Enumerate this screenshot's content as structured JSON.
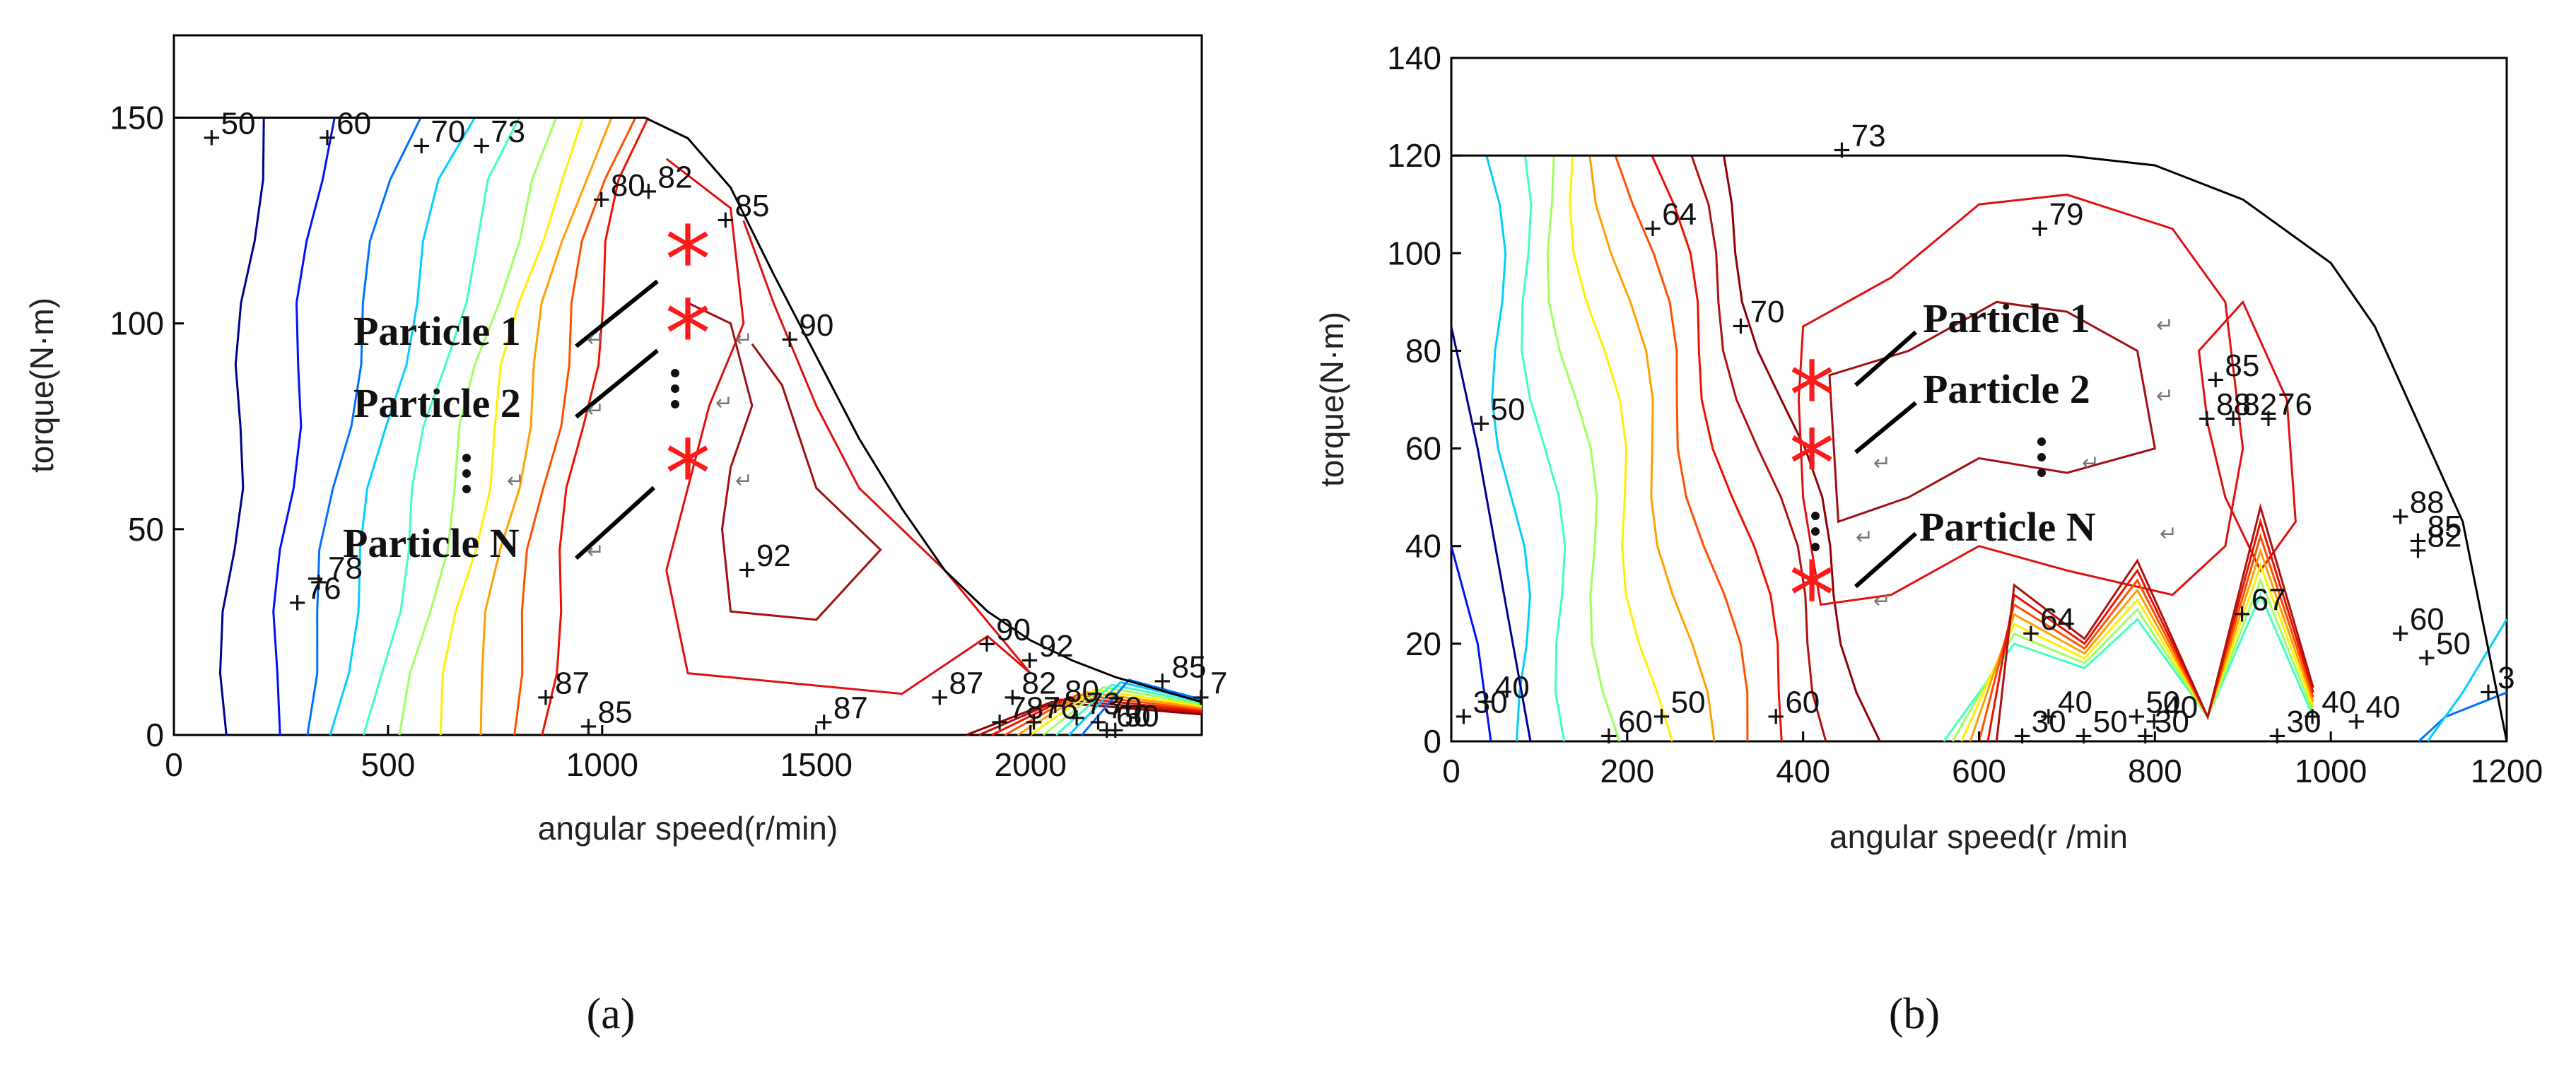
{
  "chart_data": [
    {
      "type": "contour",
      "panel_label": "(a)",
      "xlabel": "angular speed(r/min)",
      "ylabel": "torque(N·m)",
      "xlim": [
        0,
        2400
      ],
      "ylim": [
        0,
        170
      ],
      "xticks": [
        0,
        500,
        1000,
        1500,
        2000
      ],
      "yticks": [
        0,
        50,
        100,
        150
      ],
      "boundary": [
        [
          0,
          150
        ],
        [
          100,
          150
        ],
        [
          1000,
          150
        ],
        [
          1100,
          150
        ],
        [
          1200,
          145
        ],
        [
          1300,
          133
        ],
        [
          1400,
          112
        ],
        [
          1500,
          92
        ],
        [
          1600,
          72
        ],
        [
          1700,
          55
        ],
        [
          1800,
          40
        ],
        [
          1900,
          30
        ],
        [
          2000,
          23
        ],
        [
          2100,
          18
        ],
        [
          2200,
          14
        ],
        [
          2300,
          11
        ],
        [
          2400,
          8
        ]
      ],
      "contour_labels": [
        {
          "text": "50",
          "x": 90,
          "y": 145
        },
        {
          "text": "60",
          "x": 360,
          "y": 145
        },
        {
          "text": "70",
          "x": 580,
          "y": 143
        },
        {
          "text": "73",
          "x": 720,
          "y": 143
        },
        {
          "text": "80",
          "x": 1000,
          "y": 130
        },
        {
          "text": "82",
          "x": 1110,
          "y": 132
        },
        {
          "text": "85",
          "x": 1290,
          "y": 125
        },
        {
          "text": "90",
          "x": 1440,
          "y": 96
        },
        {
          "text": "92",
          "x": 1340,
          "y": 40
        },
        {
          "text": "76",
          "x": 290,
          "y": 32
        },
        {
          "text": "78",
          "x": 340,
          "y": 37
        },
        {
          "text": "87",
          "x": 870,
          "y": 9
        },
        {
          "text": "85",
          "x": 970,
          "y": 2
        },
        {
          "text": "87",
          "x": 1520,
          "y": 3
        },
        {
          "text": "87",
          "x": 1790,
          "y": 9
        },
        {
          "text": "90",
          "x": 1900,
          "y": 22
        },
        {
          "text": "92",
          "x": 2000,
          "y": 18
        },
        {
          "text": "85",
          "x": 2310,
          "y": 13
        },
        {
          "text": "82",
          "x": 1960,
          "y": 9
        },
        {
          "text": "80",
          "x": 2060,
          "y": 7
        },
        {
          "text": "78",
          "x": 1930,
          "y": 3
        },
        {
          "text": "76",
          "x": 2010,
          "y": 3
        },
        {
          "text": "73",
          "x": 2110,
          "y": 4
        },
        {
          "text": "70",
          "x": 2160,
          "y": 3
        },
        {
          "text": "60",
          "x": 2180,
          "y": 1
        },
        {
          "text": "50",
          "x": 2200,
          "y": 1
        },
        {
          "text": "7",
          "x": 2400,
          "y": 9
        }
      ],
      "particles": [
        {
          "label": "Particle 1",
          "x": 1200,
          "y": 118
        },
        {
          "label": "Particle 2",
          "x": 1200,
          "y": 100
        },
        {
          "label": "Particle N",
          "x": 1200,
          "y": 66
        }
      ]
    },
    {
      "type": "contour",
      "panel_label": "(b)",
      "xlabel": "angular speed(r /min",
      "ylabel": "torque(N·m)",
      "xlim": [
        0,
        1200
      ],
      "ylim": [
        0,
        140
      ],
      "xticks": [
        0,
        200,
        400,
        600,
        800,
        1000,
        1200
      ],
      "yticks": [
        0,
        20,
        40,
        60,
        80,
        100,
        120,
        140
      ],
      "boundary": [
        [
          0,
          120
        ],
        [
          700,
          120
        ],
        [
          800,
          118
        ],
        [
          900,
          111
        ],
        [
          1000,
          98
        ],
        [
          1050,
          85
        ],
        [
          1100,
          65
        ],
        [
          1150,
          45
        ],
        [
          1200,
          0
        ]
      ],
      "contour_labels": [
        {
          "text": "73",
          "x": 445,
          "y": 121
        },
        {
          "text": "64",
          "x": 230,
          "y": 105
        },
        {
          "text": "79",
          "x": 670,
          "y": 105
        },
        {
          "text": "70",
          "x": 330,
          "y": 85
        },
        {
          "text": "50",
          "x": 35,
          "y": 65
        },
        {
          "text": "85",
          "x": 870,
          "y": 74
        },
        {
          "text": "88",
          "x": 860,
          "y": 66
        },
        {
          "text": "82",
          "x": 890,
          "y": 66
        },
        {
          "text": "76",
          "x": 930,
          "y": 66
        },
        {
          "text": "88",
          "x": 1080,
          "y": 46
        },
        {
          "text": "85",
          "x": 1100,
          "y": 41
        },
        {
          "text": "82",
          "x": 1100,
          "y": 39
        },
        {
          "text": "67",
          "x": 900,
          "y": 26
        },
        {
          "text": "64",
          "x": 660,
          "y": 22
        },
        {
          "text": "60",
          "x": 1080,
          "y": 22
        },
        {
          "text": "50",
          "x": 1110,
          "y": 17
        },
        {
          "text": "3",
          "x": 1180,
          "y": 10
        },
        {
          "text": "40",
          "x": 40,
          "y": 8
        },
        {
          "text": "30",
          "x": 15,
          "y": 5
        },
        {
          "text": "60",
          "x": 180,
          "y": 1
        },
        {
          "text": "50",
          "x": 240,
          "y": 5
        },
        {
          "text": "60",
          "x": 370,
          "y": 5
        },
        {
          "text": "40",
          "x": 680,
          "y": 5
        },
        {
          "text": "30",
          "x": 650,
          "y": 1
        },
        {
          "text": "50",
          "x": 720,
          "y": 1
        },
        {
          "text": "50",
          "x": 780,
          "y": 5
        },
        {
          "text": "40",
          "x": 800,
          "y": 4
        },
        {
          "text": "30",
          "x": 790,
          "y": 1
        },
        {
          "text": "30",
          "x": 940,
          "y": 1
        },
        {
          "text": "40",
          "x": 980,
          "y": 5
        },
        {
          "text": "40",
          "x": 1030,
          "y": 4
        }
      ],
      "particles": [
        {
          "label": "Particle 1",
          "x": 410,
          "y": 73
        },
        {
          "label": "Particle 2",
          "x": 410,
          "y": 59
        },
        {
          "label": "Particle N",
          "x": 410,
          "y": 32
        }
      ]
    }
  ],
  "captions": {
    "a": "(a)",
    "b": "(b)"
  }
}
